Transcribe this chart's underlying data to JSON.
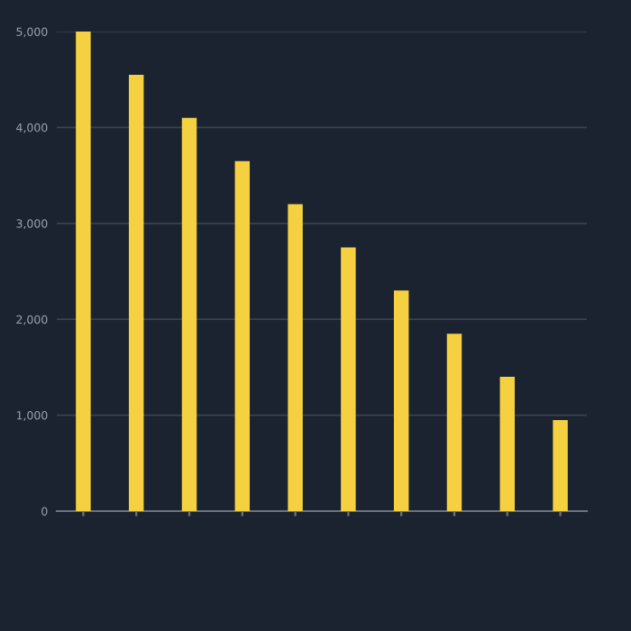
{
  "chart_data": {
    "type": "bar",
    "categories": [
      null,
      null,
      null,
      null,
      null,
      null,
      null,
      null,
      null,
      null
    ],
    "values": [
      5000,
      4550,
      4100,
      3650,
      3200,
      2750,
      2300,
      1850,
      1400,
      950
    ],
    "color": "#f5d142",
    "ylim": [
      0,
      5000
    ],
    "yticks": [
      {
        "value": 0,
        "label": "0"
      },
      {
        "value": 1000,
        "label": "1,000"
      },
      {
        "value": 2000,
        "label": "2,000"
      },
      {
        "value": 3000,
        "label": "3,000"
      },
      {
        "value": 4000,
        "label": "4,000"
      },
      {
        "value": 5000,
        "label": "5,000"
      }
    ],
    "grid": "y"
  }
}
